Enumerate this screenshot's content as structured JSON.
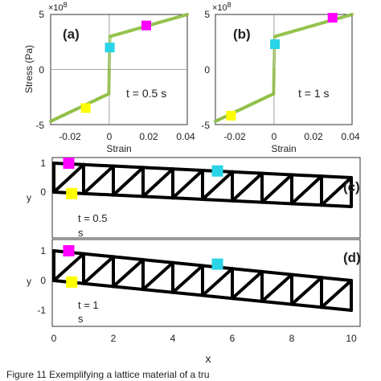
{
  "colors": {
    "data_points": "#8cbd3f",
    "truss": "#000000",
    "magenta": "#ff00ff",
    "cyan": "#28d4e6",
    "yellow": "#ffff00"
  },
  "stress_strain": {
    "ylabel": "Stress (Pa)",
    "xlabel": "Strain",
    "multiplier": "×10",
    "exponent": "8",
    "panels": [
      {
        "label": "(a)",
        "time": "t = 0.5 s",
        "markers": [
          {
            "color": "magenta",
            "x": 0.019,
            "y": 400000000
          },
          {
            "color": "cyan",
            "x": 0.0003,
            "y": 200000000
          },
          {
            "color": "yellow",
            "x": -0.012,
            "y": -350000000
          }
        ]
      },
      {
        "label": "(b)",
        "time": "t = 1 s",
        "markers": [
          {
            "color": "magenta",
            "x": 0.03,
            "y": 470000000
          },
          {
            "color": "cyan",
            "x": 0.0005,
            "y": 230000000
          },
          {
            "color": "yellow",
            "x": -0.022,
            "y": -420000000
          }
        ]
      }
    ]
  },
  "truss": {
    "xlabel": "x",
    "ylabel": "y",
    "panels": [
      {
        "label": "(c)",
        "time_line1": "t = 0.5",
        "time_line2": "s",
        "markers": [
          {
            "color": "magenta",
            "x": 0.5,
            "y": 1.0
          },
          {
            "color": "yellow",
            "x": 0.6,
            "y": -0.05
          },
          {
            "color": "cyan",
            "x": 5.5,
            "y": 0.73
          }
        ]
      },
      {
        "label": "(d)",
        "time_line1": "t = 1",
        "time_line2": "s",
        "markers": [
          {
            "color": "magenta",
            "x": 0.5,
            "y": 1.0
          },
          {
            "color": "yellow",
            "x": 0.6,
            "y": -0.05
          },
          {
            "color": "cyan",
            "x": 5.5,
            "y": 0.55
          }
        ]
      }
    ]
  },
  "caption": "Figure 11    Exemplifying  a  lattice  material  of  a  tru",
  "chart_data": [
    {
      "type": "scatter",
      "panel": "(a)",
      "xlabel": "Strain",
      "ylabel": "Stress (Pa)",
      "y_multiplier": "1e8",
      "xlim": [
        -0.03,
        0.04
      ],
      "ylim": [
        -500000000,
        500000000
      ],
      "x_ticks": [
        "-0.02",
        "0",
        "0.02",
        "0.04"
      ],
      "y_ticks": [
        "-5",
        "0",
        "5"
      ],
      "annotation": "t = 0.5 s",
      "series": [
        {
          "x": [
            -0.03,
            -0.0002,
            0.0,
            0.0004,
            0.04
          ],
          "y": [
            -470000000,
            -220000000,
            0,
            300000000,
            500000000
          ]
        }
      ]
    },
    {
      "type": "scatter",
      "panel": "(b)",
      "xlabel": "Strain",
      "ylabel": "Stress (Pa)",
      "y_multiplier": "1e8",
      "xlim": [
        -0.03,
        0.04
      ],
      "ylim": [
        -500000000,
        500000000
      ],
      "x_ticks": [
        "-0.02",
        "0",
        "0.02",
        "0.04"
      ],
      "y_ticks": [
        "-5",
        "0",
        "5"
      ],
      "annotation": "t = 1 s",
      "series": [
        {
          "x": [
            -0.03,
            -0.0002,
            0.0,
            0.0004,
            0.04
          ],
          "y": [
            -470000000,
            -220000000,
            0,
            300000000,
            500000000
          ]
        }
      ]
    },
    {
      "type": "line",
      "panel": "(c)",
      "xlabel": "x",
      "ylabel": "y",
      "xlim": [
        0,
        10
      ],
      "ylim": [
        -0.5,
        1.3
      ],
      "y_ticks": [
        "0",
        "1"
      ],
      "annotation": "t = 0.5 s",
      "top_chord": {
        "x": [
          0,
          10
        ],
        "y": [
          1.0,
          0.5
        ]
      },
      "bottom_chord": {
        "x": [
          0,
          10
        ],
        "y": [
          0.0,
          -0.5
        ]
      }
    },
    {
      "type": "line",
      "panel": "(d)",
      "xlabel": "x",
      "ylabel": "y",
      "xlim": [
        0,
        10
      ],
      "ylim": [
        -1.3,
        1.3
      ],
      "x_ticks": [
        "0",
        "2",
        "4",
        "6",
        "8",
        "10"
      ],
      "y_ticks": [
        "-1",
        "0",
        "1"
      ],
      "annotation": "t = 1 s",
      "top_chord": {
        "x": [
          0,
          10
        ],
        "y": [
          1.0,
          0.0
        ]
      },
      "bottom_chord": {
        "x": [
          0,
          10
        ],
        "y": [
          0.0,
          -1.0
        ]
      }
    }
  ]
}
